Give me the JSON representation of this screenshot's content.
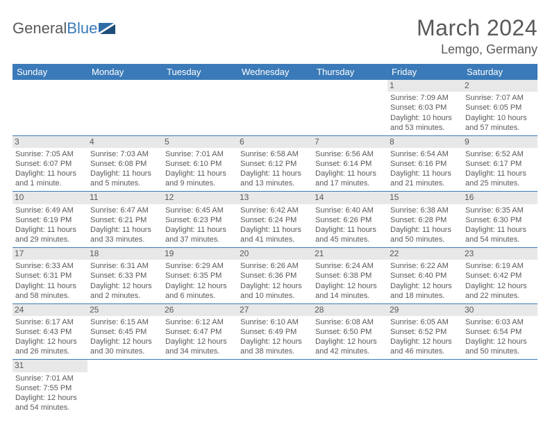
{
  "logo": {
    "text1": "General",
    "text2": "Blue"
  },
  "title": {
    "month": "March 2024",
    "location": "Lemgo, Germany"
  },
  "headers": [
    "Sunday",
    "Monday",
    "Tuesday",
    "Wednesday",
    "Thursday",
    "Friday",
    "Saturday"
  ],
  "colors": {
    "header_bg": "#3a7ab8",
    "header_text": "#ffffff",
    "daybar_bg": "#e8e8e8",
    "text": "#595959",
    "rule": "#3a7ab8"
  },
  "weeks": [
    [
      null,
      null,
      null,
      null,
      null,
      {
        "n": "1",
        "sr": "Sunrise: 7:09 AM",
        "ss": "Sunset: 6:03 PM",
        "dl1": "Daylight: 10 hours",
        "dl2": "and 53 minutes."
      },
      {
        "n": "2",
        "sr": "Sunrise: 7:07 AM",
        "ss": "Sunset: 6:05 PM",
        "dl1": "Daylight: 10 hours",
        "dl2": "and 57 minutes."
      }
    ],
    [
      {
        "n": "3",
        "sr": "Sunrise: 7:05 AM",
        "ss": "Sunset: 6:07 PM",
        "dl1": "Daylight: 11 hours",
        "dl2": "and 1 minute."
      },
      {
        "n": "4",
        "sr": "Sunrise: 7:03 AM",
        "ss": "Sunset: 6:08 PM",
        "dl1": "Daylight: 11 hours",
        "dl2": "and 5 minutes."
      },
      {
        "n": "5",
        "sr": "Sunrise: 7:01 AM",
        "ss": "Sunset: 6:10 PM",
        "dl1": "Daylight: 11 hours",
        "dl2": "and 9 minutes."
      },
      {
        "n": "6",
        "sr": "Sunrise: 6:58 AM",
        "ss": "Sunset: 6:12 PM",
        "dl1": "Daylight: 11 hours",
        "dl2": "and 13 minutes."
      },
      {
        "n": "7",
        "sr": "Sunrise: 6:56 AM",
        "ss": "Sunset: 6:14 PM",
        "dl1": "Daylight: 11 hours",
        "dl2": "and 17 minutes."
      },
      {
        "n": "8",
        "sr": "Sunrise: 6:54 AM",
        "ss": "Sunset: 6:16 PM",
        "dl1": "Daylight: 11 hours",
        "dl2": "and 21 minutes."
      },
      {
        "n": "9",
        "sr": "Sunrise: 6:52 AM",
        "ss": "Sunset: 6:17 PM",
        "dl1": "Daylight: 11 hours",
        "dl2": "and 25 minutes."
      }
    ],
    [
      {
        "n": "10",
        "sr": "Sunrise: 6:49 AM",
        "ss": "Sunset: 6:19 PM",
        "dl1": "Daylight: 11 hours",
        "dl2": "and 29 minutes."
      },
      {
        "n": "11",
        "sr": "Sunrise: 6:47 AM",
        "ss": "Sunset: 6:21 PM",
        "dl1": "Daylight: 11 hours",
        "dl2": "and 33 minutes."
      },
      {
        "n": "12",
        "sr": "Sunrise: 6:45 AM",
        "ss": "Sunset: 6:23 PM",
        "dl1": "Daylight: 11 hours",
        "dl2": "and 37 minutes."
      },
      {
        "n": "13",
        "sr": "Sunrise: 6:42 AM",
        "ss": "Sunset: 6:24 PM",
        "dl1": "Daylight: 11 hours",
        "dl2": "and 41 minutes."
      },
      {
        "n": "14",
        "sr": "Sunrise: 6:40 AM",
        "ss": "Sunset: 6:26 PM",
        "dl1": "Daylight: 11 hours",
        "dl2": "and 45 minutes."
      },
      {
        "n": "15",
        "sr": "Sunrise: 6:38 AM",
        "ss": "Sunset: 6:28 PM",
        "dl1": "Daylight: 11 hours",
        "dl2": "and 50 minutes."
      },
      {
        "n": "16",
        "sr": "Sunrise: 6:35 AM",
        "ss": "Sunset: 6:30 PM",
        "dl1": "Daylight: 11 hours",
        "dl2": "and 54 minutes."
      }
    ],
    [
      {
        "n": "17",
        "sr": "Sunrise: 6:33 AM",
        "ss": "Sunset: 6:31 PM",
        "dl1": "Daylight: 11 hours",
        "dl2": "and 58 minutes."
      },
      {
        "n": "18",
        "sr": "Sunrise: 6:31 AM",
        "ss": "Sunset: 6:33 PM",
        "dl1": "Daylight: 12 hours",
        "dl2": "and 2 minutes."
      },
      {
        "n": "19",
        "sr": "Sunrise: 6:29 AM",
        "ss": "Sunset: 6:35 PM",
        "dl1": "Daylight: 12 hours",
        "dl2": "and 6 minutes."
      },
      {
        "n": "20",
        "sr": "Sunrise: 6:26 AM",
        "ss": "Sunset: 6:36 PM",
        "dl1": "Daylight: 12 hours",
        "dl2": "and 10 minutes."
      },
      {
        "n": "21",
        "sr": "Sunrise: 6:24 AM",
        "ss": "Sunset: 6:38 PM",
        "dl1": "Daylight: 12 hours",
        "dl2": "and 14 minutes."
      },
      {
        "n": "22",
        "sr": "Sunrise: 6:22 AM",
        "ss": "Sunset: 6:40 PM",
        "dl1": "Daylight: 12 hours",
        "dl2": "and 18 minutes."
      },
      {
        "n": "23",
        "sr": "Sunrise: 6:19 AM",
        "ss": "Sunset: 6:42 PM",
        "dl1": "Daylight: 12 hours",
        "dl2": "and 22 minutes."
      }
    ],
    [
      {
        "n": "24",
        "sr": "Sunrise: 6:17 AM",
        "ss": "Sunset: 6:43 PM",
        "dl1": "Daylight: 12 hours",
        "dl2": "and 26 minutes."
      },
      {
        "n": "25",
        "sr": "Sunrise: 6:15 AM",
        "ss": "Sunset: 6:45 PM",
        "dl1": "Daylight: 12 hours",
        "dl2": "and 30 minutes."
      },
      {
        "n": "26",
        "sr": "Sunrise: 6:12 AM",
        "ss": "Sunset: 6:47 PM",
        "dl1": "Daylight: 12 hours",
        "dl2": "and 34 minutes."
      },
      {
        "n": "27",
        "sr": "Sunrise: 6:10 AM",
        "ss": "Sunset: 6:49 PM",
        "dl1": "Daylight: 12 hours",
        "dl2": "and 38 minutes."
      },
      {
        "n": "28",
        "sr": "Sunrise: 6:08 AM",
        "ss": "Sunset: 6:50 PM",
        "dl1": "Daylight: 12 hours",
        "dl2": "and 42 minutes."
      },
      {
        "n": "29",
        "sr": "Sunrise: 6:05 AM",
        "ss": "Sunset: 6:52 PM",
        "dl1": "Daylight: 12 hours",
        "dl2": "and 46 minutes."
      },
      {
        "n": "30",
        "sr": "Sunrise: 6:03 AM",
        "ss": "Sunset: 6:54 PM",
        "dl1": "Daylight: 12 hours",
        "dl2": "and 50 minutes."
      }
    ],
    [
      {
        "n": "31",
        "sr": "Sunrise: 7:01 AM",
        "ss": "Sunset: 7:55 PM",
        "dl1": "Daylight: 12 hours",
        "dl2": "and 54 minutes."
      },
      null,
      null,
      null,
      null,
      null,
      null
    ]
  ]
}
